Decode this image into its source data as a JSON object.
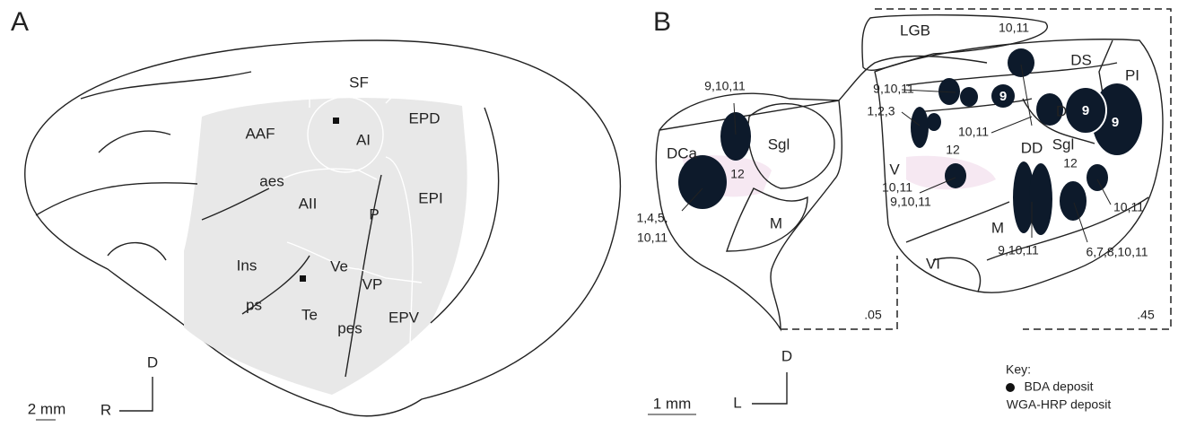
{
  "panel_a": {
    "letter": "A",
    "labels": [
      "SF",
      "AAF",
      "AI",
      "EPD",
      "aes",
      "AII",
      "EPI",
      "P",
      "Ve",
      "Ins",
      "VP",
      "ps",
      "Te",
      "pes",
      "EPV"
    ],
    "scale": "2 mm",
    "orientation": {
      "up": "D",
      "side": "R"
    }
  },
  "panel_b": {
    "letter": "B",
    "labels": [
      "LGB",
      "10,11",
      "DS",
      "PI",
      "9,10,11",
      "9,10,11",
      "D",
      "9",
      "9",
      "9",
      "1,2,3",
      "10,11",
      "10,11",
      "DCa",
      "Sgl",
      "Sgl",
      "DD",
      "12",
      "12",
      "12",
      "V",
      "9,10,11",
      "M",
      "M",
      "10,11",
      "1,4,5,",
      "10,11",
      "9,10,11",
      "6,7,8,10,11",
      "VI",
      ".05",
      ".45"
    ],
    "scale": "1 mm",
    "orientation": {
      "up": "D",
      "side": "L"
    },
    "key": {
      "title": "Key:",
      "items": [
        "BDA deposit",
        "WGA-HRP deposit"
      ]
    }
  }
}
